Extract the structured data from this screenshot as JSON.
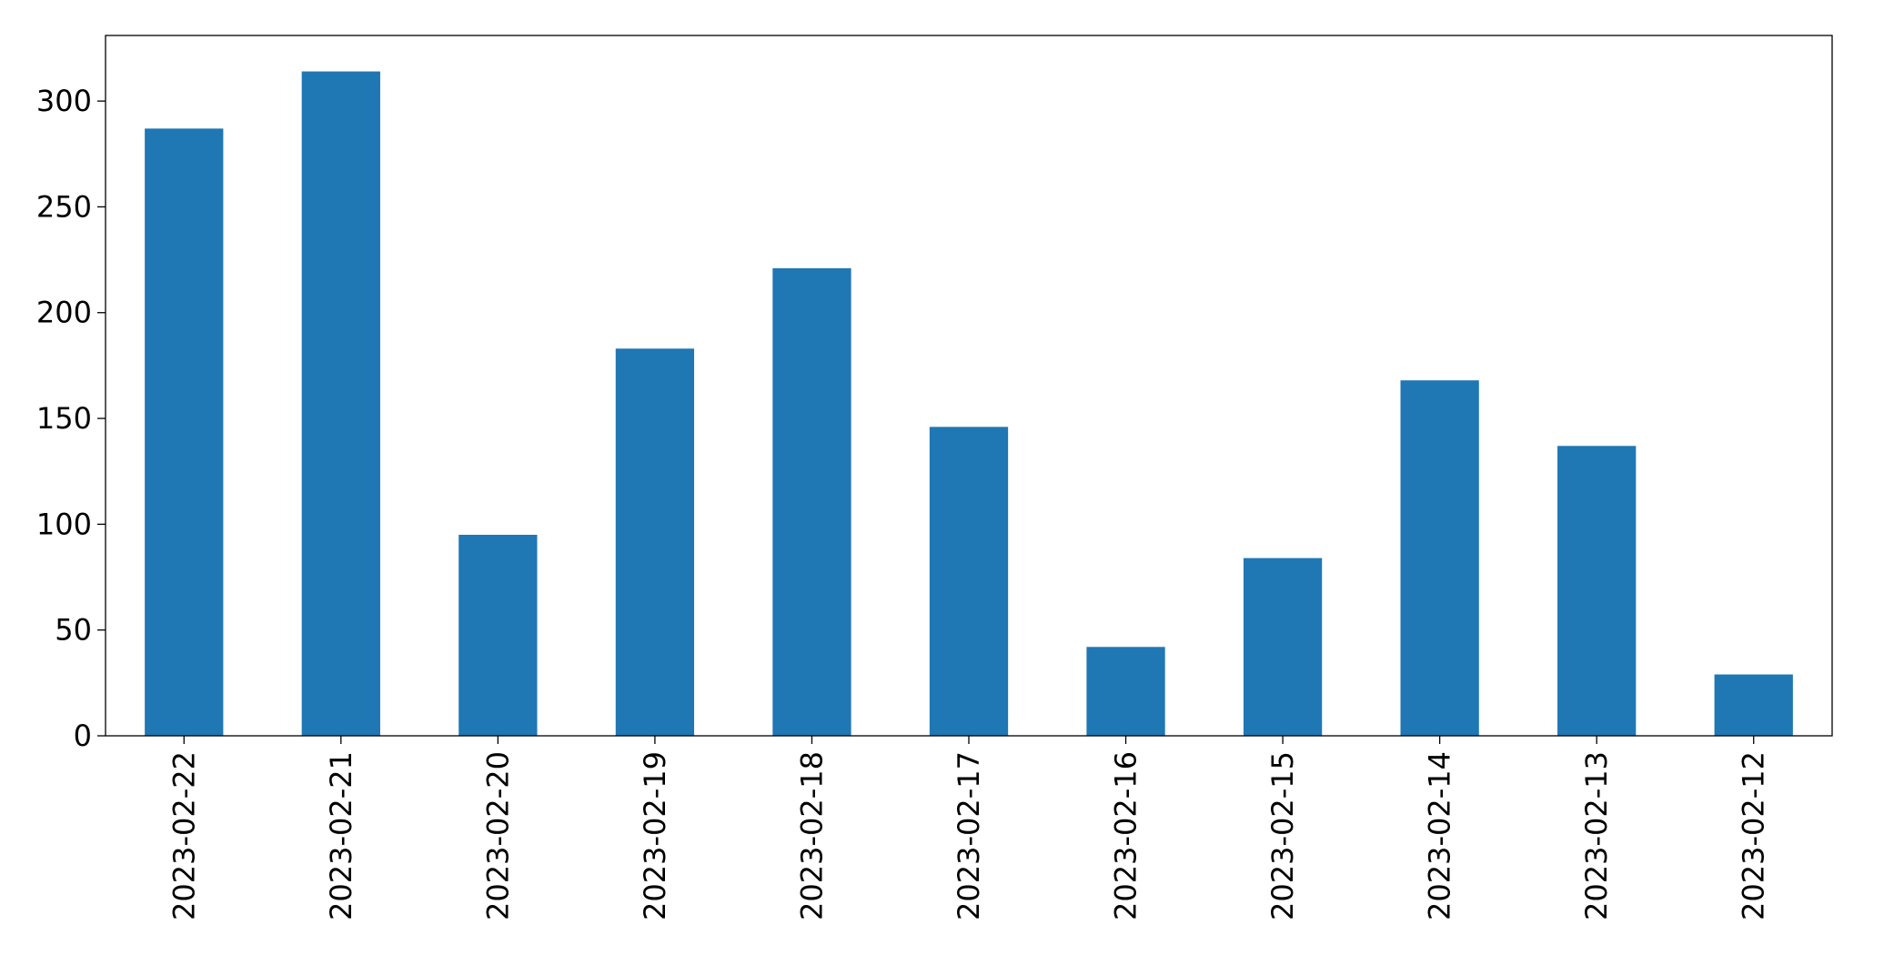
{
  "chart_data": {
    "type": "bar",
    "categories": [
      "2023-02-22",
      "2023-02-21",
      "2023-02-20",
      "2023-02-19",
      "2023-02-18",
      "2023-02-17",
      "2023-02-16",
      "2023-02-15",
      "2023-02-14",
      "2023-02-13",
      "2023-02-12"
    ],
    "values": [
      287,
      314,
      95,
      183,
      221,
      146,
      42,
      84,
      168,
      137,
      29
    ],
    "color": "#1f77b4",
    "ylim": [
      0,
      331
    ],
    "yticks": [
      0,
      50,
      100,
      150,
      200,
      250,
      300
    ],
    "grid": false
  }
}
